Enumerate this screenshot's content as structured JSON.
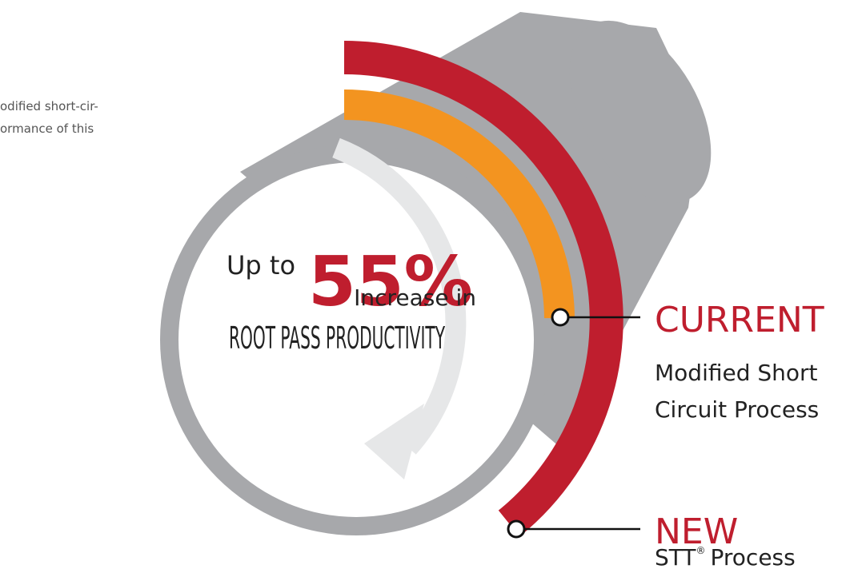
{
  "intro": {
    "lines": [
      "odified short-cir-",
      "ormance of this"
    ]
  },
  "headline": {
    "prefix": "Up to",
    "figure": "55%",
    "suffix": "Increase in",
    "subject": "ROOT PASS PRODUCTIVITY"
  },
  "legend": [
    {
      "title": "CURRENT",
      "lines": [
        "Modified Short",
        "Circuit Process"
      ]
    },
    {
      "title": "NEW",
      "name": "STT",
      "mark": "®",
      "rest": "Process"
    }
  ]
}
